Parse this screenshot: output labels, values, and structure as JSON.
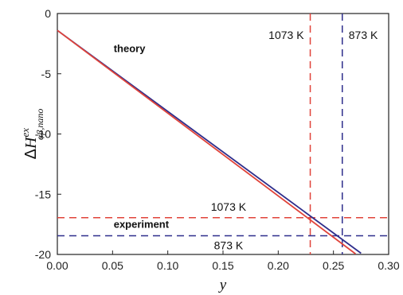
{
  "chart_data": {
    "type": "line",
    "xlabel": "y",
    "ylabel": {
      "delta": "Δ",
      "main": "H",
      "sup": "ex",
      "sub": "αβ,nano"
    },
    "xlim": [
      0.0,
      0.3
    ],
    "ylim": [
      -20,
      0
    ],
    "xticks": [
      "0.00",
      "0.05",
      "0.10",
      "0.15",
      "0.20",
      "0.25",
      "0.30"
    ],
    "yticks": [
      "0",
      "-5",
      "-10",
      "-15",
      "-20"
    ],
    "grid": false,
    "series": [
      {
        "name": "873 K",
        "color": "#2e2e8c",
        "x": [
          0.0,
          0.275
        ],
        "y": [
          -1.4,
          -19.9
        ]
      },
      {
        "name": "1073 K",
        "color": "#e0433a",
        "x": [
          0.0,
          0.27
        ],
        "y": [
          -1.4,
          -19.95
        ]
      }
    ],
    "reference_lines": [
      {
        "orientation": "vertical",
        "value": 0.229,
        "color": "#e0433a",
        "label": "1073 K"
      },
      {
        "orientation": "vertical",
        "value": 0.258,
        "color": "#2e2e8c",
        "label": "873 K"
      },
      {
        "orientation": "horizontal",
        "value": -16.95,
        "color": "#e0433a",
        "label": "1073 K"
      },
      {
        "orientation": "horizontal",
        "value": -18.45,
        "color": "#2e2e8c",
        "label": "873 K"
      }
    ],
    "annotations": {
      "theory": "theory",
      "experiment": "experiment"
    }
  }
}
